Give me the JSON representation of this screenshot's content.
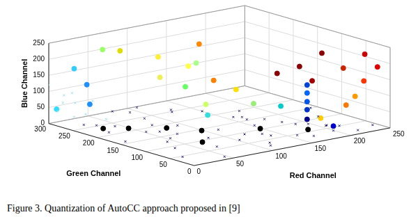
{
  "chart_data": {
    "type": "scatter",
    "caption": "Figure 3. Quantization of AutoCC approach proposed in [9]",
    "xlabel": "Red Channel",
    "ylabel": "Green Channel",
    "zlabel": "Blue Channel",
    "xlim": [
      0,
      250
    ],
    "xticks": [
      0,
      50,
      100,
      150,
      200,
      250
    ],
    "ylim": [
      0,
      300
    ],
    "yticks": [
      0,
      50,
      100,
      150,
      200,
      250,
      300
    ],
    "zlim": [
      0,
      250
    ],
    "zticks": [
      0,
      50,
      100,
      150,
      200,
      250
    ],
    "grid": true,
    "series": [
      {
        "marker": "cross",
        "color": "#1a1a6e",
        "x": [
          10,
          25,
          40,
          55,
          70,
          85,
          100,
          115,
          130,
          145,
          160,
          175,
          190,
          205,
          220,
          235,
          20,
          35,
          50,
          65,
          80,
          95,
          110,
          125,
          140,
          155,
          170,
          185,
          200,
          215,
          5,
          30,
          60,
          90,
          120,
          150,
          180,
          210,
          240,
          45,
          75,
          105,
          135,
          165,
          195,
          15,
          50,
          85,
          120,
          160
        ],
        "y": [
          40,
          80,
          120,
          160,
          200,
          240,
          280,
          30,
          70,
          110,
          150,
          190,
          20,
          60,
          100,
          140,
          260,
          220,
          180,
          140,
          100,
          60,
          20,
          250,
          210,
          170,
          130,
          90,
          50,
          10,
          150,
          250,
          50,
          180,
          240,
          30,
          110,
          40,
          20,
          10,
          290,
          120,
          60,
          20,
          80,
          200,
          130,
          270,
          90,
          160
        ],
        "z": [
          5,
          8,
          3,
          10,
          6,
          2,
          12,
          4,
          7,
          9,
          3,
          5,
          11,
          2,
          6,
          8,
          4,
          10,
          3,
          7,
          5,
          9,
          2,
          6,
          12,
          4,
          8,
          3,
          10,
          5,
          7,
          2,
          9,
          4,
          6,
          11,
          3,
          8,
          5,
          2,
          7,
          10,
          4,
          6,
          3,
          9,
          5,
          8,
          2,
          6
        ]
      },
      {
        "marker": "cross",
        "color": "#99ddee",
        "x": [
          5,
          10,
          15,
          5,
          20,
          10,
          25,
          0,
          15,
          30
        ],
        "y": [
          290,
          285,
          270,
          260,
          280,
          240,
          250,
          300,
          295,
          230
        ],
        "z": [
          40,
          90,
          70,
          110,
          20,
          50,
          80,
          120,
          60,
          30
        ]
      },
      {
        "marker": "circle",
        "x": [
          200,
          230,
          190,
          215,
          240,
          180,
          200,
          235,
          175,
          175,
          175,
          175,
          175,
          130,
          230,
          130,
          200,
          60,
          90,
          110,
          80,
          140,
          180,
          50,
          120,
          100,
          150,
          120,
          20,
          10,
          110,
          160,
          30,
          40,
          190,
          20,
          40,
          70,
          90,
          140,
          170,
          60
        ],
        "y": [
          60,
          20,
          90,
          40,
          10,
          120,
          80,
          30,
          50,
          50,
          50,
          50,
          50,
          200,
          40,
          170,
          10,
          250,
          220,
          190,
          200,
          140,
          30,
          270,
          190,
          180,
          120,
          170,
          280,
          300,
          150,
          80,
          270,
          280,
          20,
          220,
          200,
          170,
          130,
          90,
          40,
          80
        ],
        "z": [
          230,
          230,
          180,
          185,
          190,
          150,
          135,
          140,
          40,
          70,
          95,
          122,
          147,
          230,
          90,
          130,
          90,
          220,
          200,
          175,
          150,
          110,
          50,
          220,
          180,
          120,
          70,
          60,
          170,
          40,
          40,
          75,
          120,
          50,
          25,
          10,
          10,
          10,
          10,
          10,
          15,
          10
        ],
        "colors": [
          "#8b0000",
          "#cc0000",
          "#8b0000",
          "#cc2200",
          "#e00000",
          "#8b0000",
          "#a00000",
          "#ff3300",
          "#00008b",
          "#0033cc",
          "#0055ee",
          "#0066ff",
          "#0044dd",
          "#ff8800",
          "#ff9900",
          "#ff8000",
          "#ff7700",
          "#dddd00",
          "#ffee33",
          "#ffff44",
          "#eeee55",
          "#ffe000",
          "#ffcc00",
          "#99ff66",
          "#aaff88",
          "#66ff66",
          "#99ee77",
          "#ccff66",
          "#33ccff",
          "#33ddff",
          "#33dddd",
          "#00cccc",
          "#1e90ff",
          "#1e90ff",
          "#0000cc",
          "#000000",
          "#000000",
          "#000000",
          "#000000",
          "#000000",
          "#000000",
          "#000000"
        ]
      }
    ]
  }
}
